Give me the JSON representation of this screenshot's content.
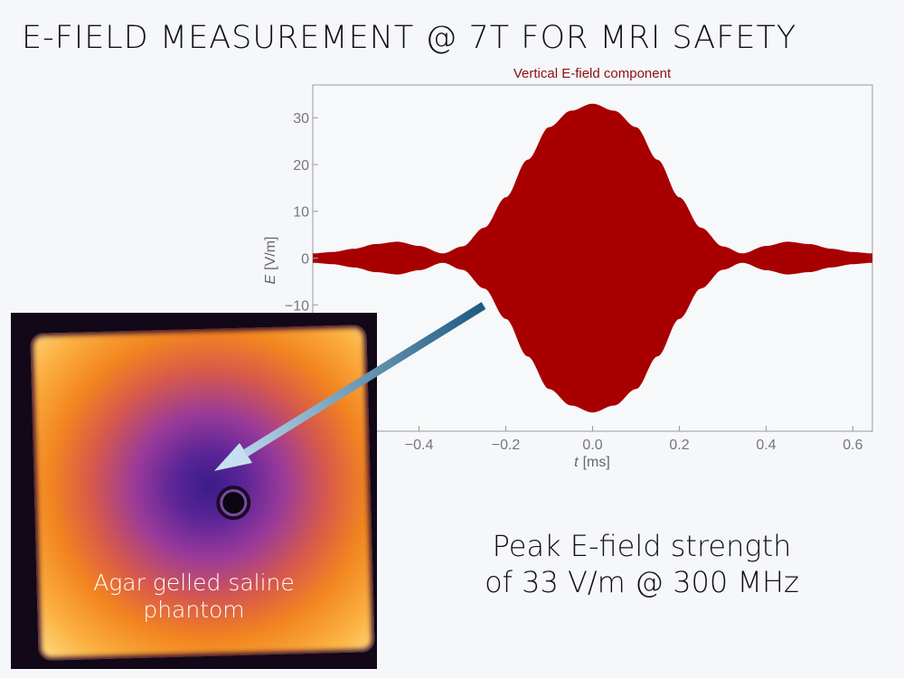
{
  "slide": {
    "title": "E-FIELD MEASUREMENT @ 7T FOR MRI SAFETY",
    "phantom_label_line1": "Agar gelled saline",
    "phantom_label_line2": "phantom",
    "summary_line1": "Peak E-field strength",
    "summary_line2": "of 33 V/m @ 300 MHz"
  },
  "chart_data": {
    "type": "area",
    "title": "Vertical E-field component",
    "xlabel_var": "t",
    "xlabel_unit": "[ms]",
    "ylabel_var": "E",
    "ylabel_unit": "[V/m]",
    "xlim": [
      -0.645,
      0.645
    ],
    "ylim": [
      -37,
      37
    ],
    "xticks": [
      -0.4,
      -0.2,
      0.0,
      0.2,
      0.4,
      0.6
    ],
    "xtick_labels": [
      "−0.4",
      "−0.2",
      "0.0",
      "0.2",
      "0.4",
      "0.6"
    ],
    "yticks": [
      30,
      20,
      10,
      0,
      -10
    ],
    "ytick_labels": [
      "30",
      "20",
      "10",
      "0",
      "−10"
    ],
    "grid": false,
    "description_of_fill": "oscillating signal filled between +envelope and -envelope",
    "envelope": {
      "t": [
        0,
        0.05,
        0.1,
        0.15,
        0.2,
        0.25,
        0.3,
        0.345,
        0.4,
        0.45,
        0.5,
        0.55,
        0.6,
        0.645
      ],
      "amplitude": [
        33,
        31.5,
        28,
        21,
        13,
        6.5,
        2.5,
        1.0,
        2.6,
        3.5,
        3.0,
        2.0,
        1.3,
        1.0
      ]
    },
    "color": "#a80000",
    "title_color": "#8b1010"
  }
}
